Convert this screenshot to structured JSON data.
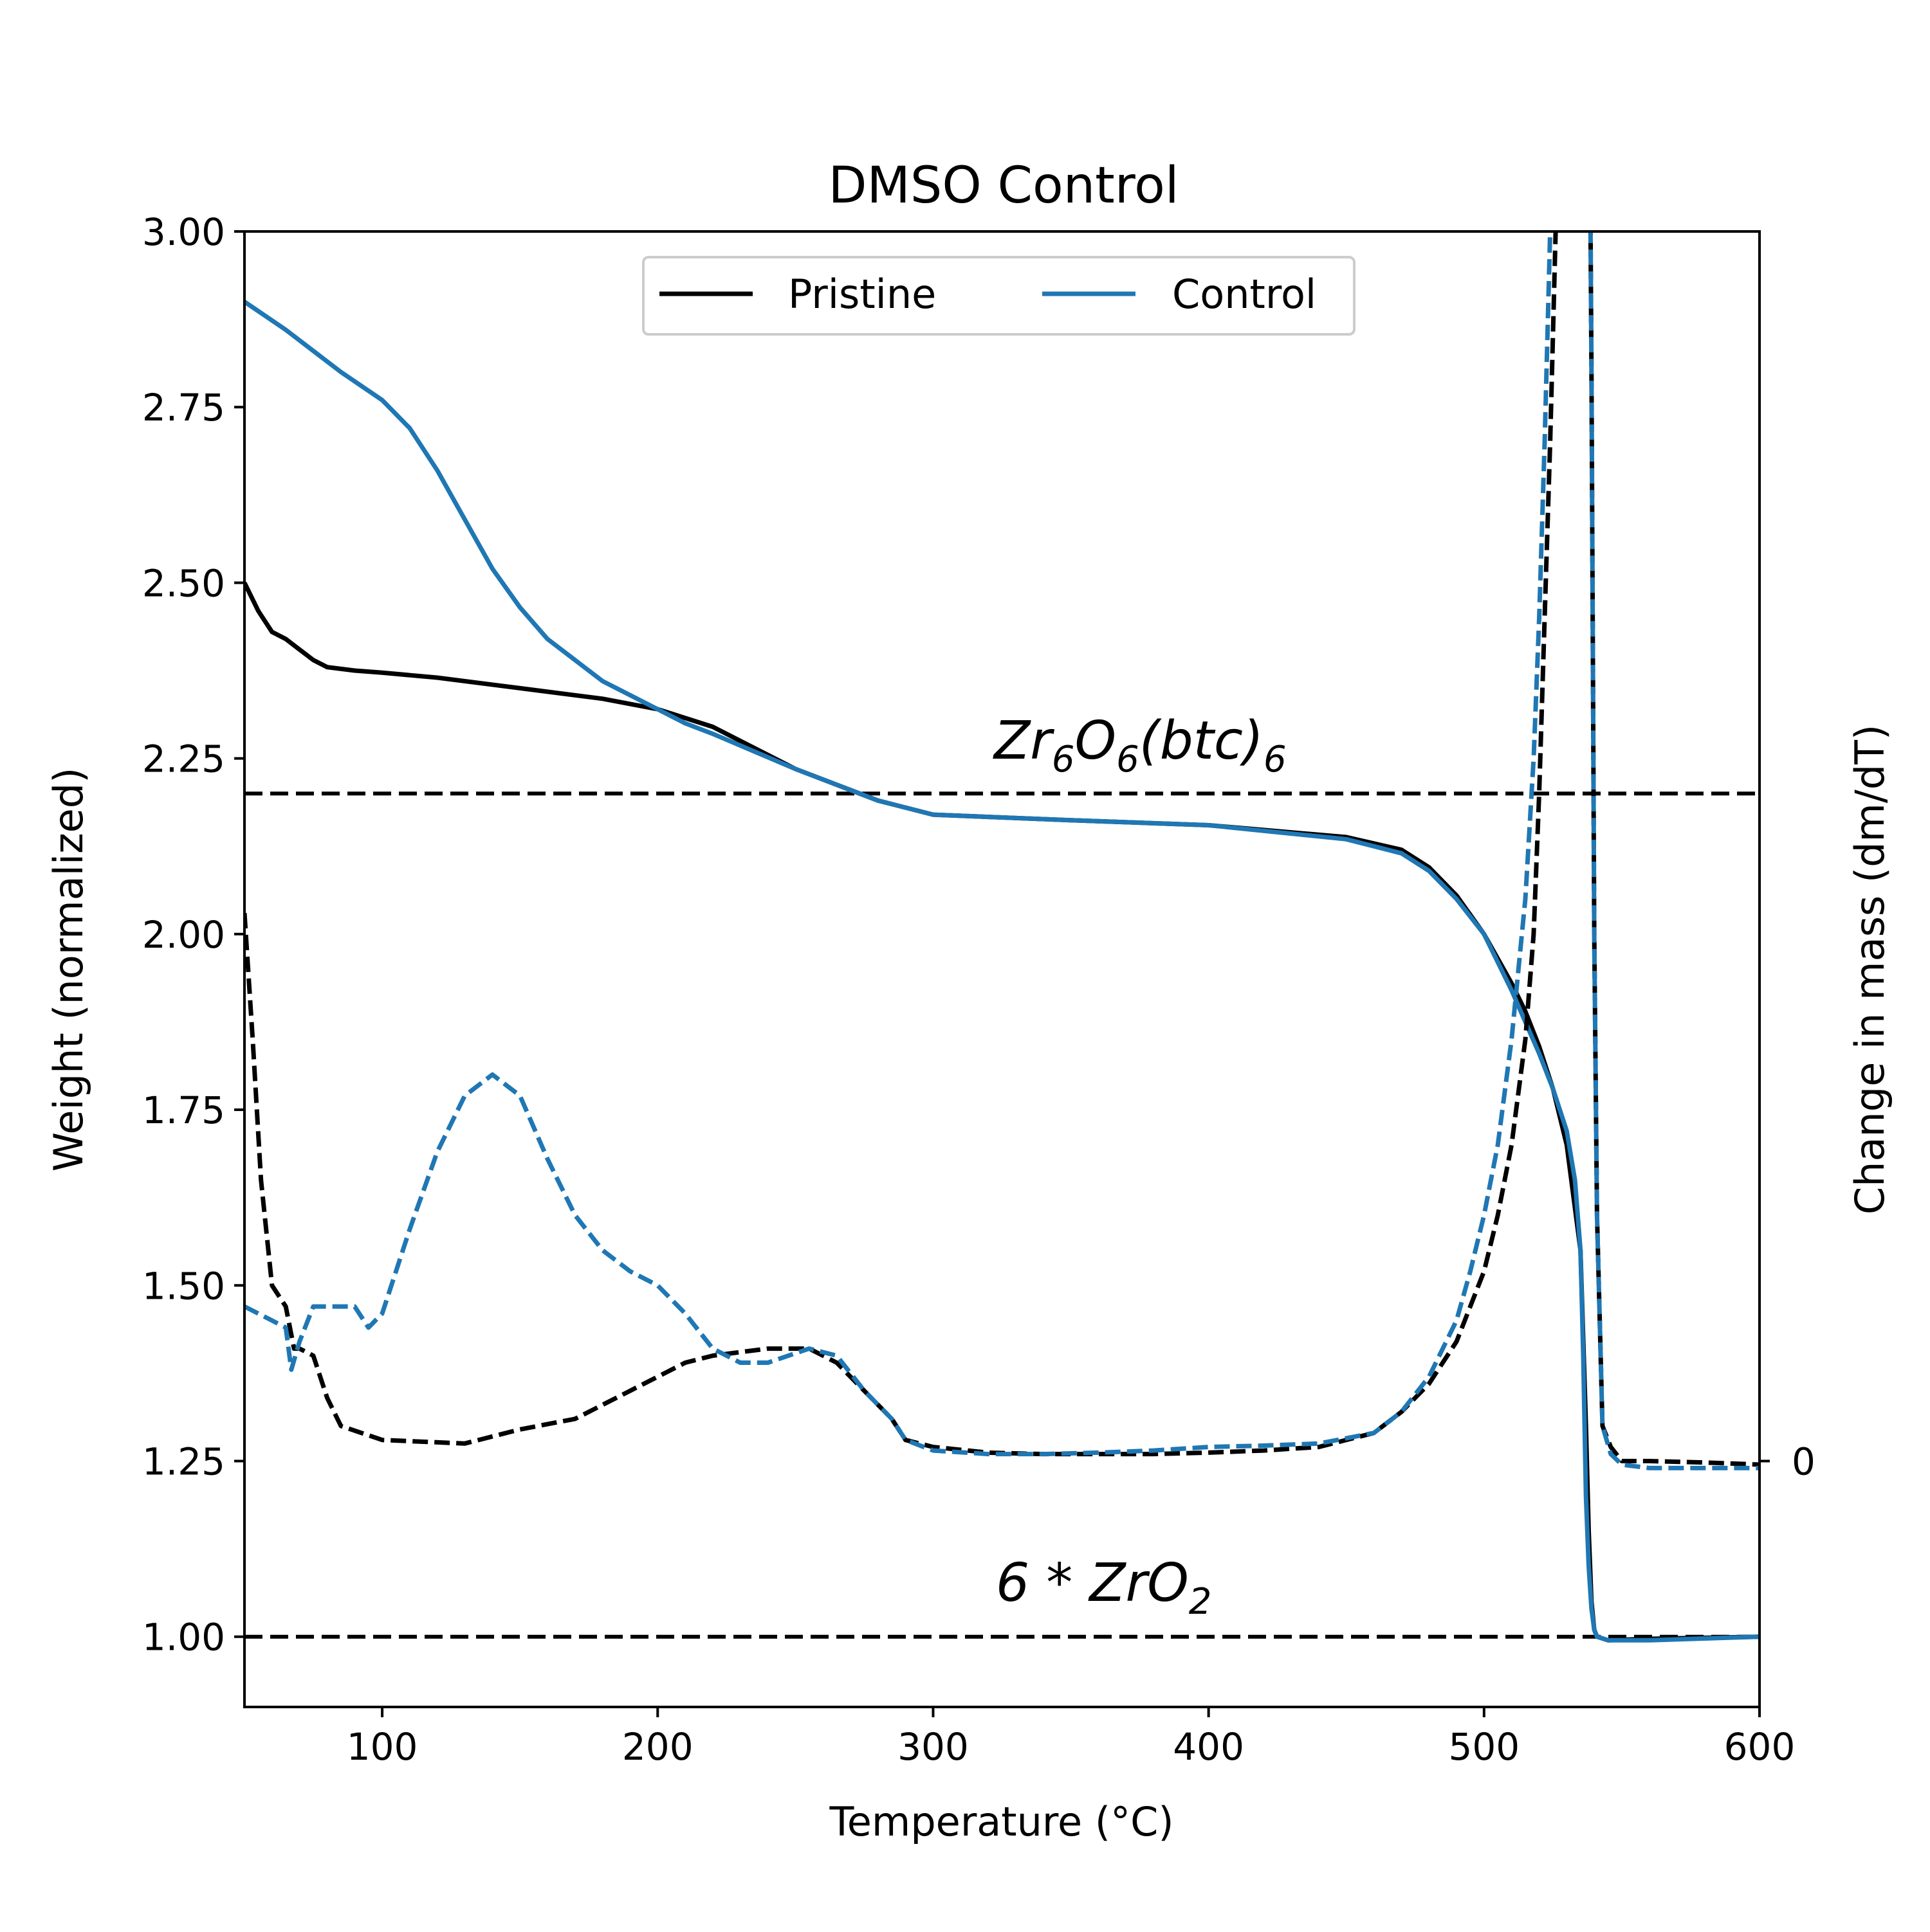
{
  "chart_data": {
    "type": "line",
    "title": "DMSO Control",
    "xlabel": "Temperature (°C)",
    "ylabel": "Weight (normalized)",
    "y2label": "Change in mass (dm/dT)",
    "xlim": [
      50,
      600
    ],
    "ylim": [
      0.9,
      3.0
    ],
    "xticks": [
      100,
      200,
      300,
      400,
      500,
      600
    ],
    "xtick_labels": [
      "100",
      "200",
      "300",
      "400",
      "500",
      "600"
    ],
    "yticks": [
      1.0,
      1.25,
      1.5,
      1.75,
      2.0,
      2.25,
      2.5,
      2.75,
      3.0
    ],
    "ytick_labels": [
      "1.00",
      "1.25",
      "1.50",
      "1.75",
      "2.00",
      "2.25",
      "2.50",
      "2.75",
      "3.00"
    ],
    "y2_tick": {
      "value": 1.25,
      "label": "0"
    },
    "grid": false,
    "legend_position": "top-center",
    "legend": [
      {
        "label": "Pristine",
        "color": "#000000"
      },
      {
        "label": "Control",
        "color": "#1f77b4"
      }
    ],
    "reference_lines": [
      {
        "y": 2.2,
        "label_main": "Zr",
        "label_parts": [
          "Zr",
          "6",
          "O",
          "6",
          "(btc)",
          "6"
        ],
        "text": "Zr6O6(btc)6"
      },
      {
        "y": 1.0,
        "label_parts": [
          "6 * ZrO",
          "2"
        ],
        "text": "6*ZrO2"
      }
    ],
    "series": [
      {
        "name": "Pristine",
        "style": "solid",
        "color": "#000000",
        "x": [
          50,
          55,
          60,
          65,
          70,
          75,
          80,
          90,
          100,
          120,
          150,
          180,
          200,
          220,
          250,
          270,
          280,
          300,
          350,
          400,
          450,
          470,
          480,
          490,
          500,
          510,
          515,
          520,
          525,
          530,
          535,
          537,
          538,
          539,
          540,
          541,
          545,
          560,
          600
        ],
        "y": [
          2.5,
          2.46,
          2.43,
          2.42,
          2.405,
          2.39,
          2.38,
          2.375,
          2.372,
          2.365,
          2.35,
          2.335,
          2.32,
          2.295,
          2.235,
          2.205,
          2.19,
          2.17,
          2.162,
          2.155,
          2.138,
          2.12,
          2.095,
          2.055,
          2.0,
          1.93,
          1.89,
          1.84,
          1.78,
          1.7,
          1.55,
          1.3,
          1.15,
          1.05,
          1.01,
          1.0,
          0.995,
          0.997,
          1.0
        ]
      },
      {
        "name": "Control",
        "style": "solid",
        "color": "#1f77b4",
        "x": [
          50,
          65,
          75,
          85,
          100,
          110,
          120,
          130,
          140,
          150,
          160,
          170,
          180,
          200,
          210,
          220,
          250,
          270,
          280,
          300,
          350,
          400,
          450,
          470,
          480,
          490,
          500,
          510,
          520,
          525,
          530,
          533,
          535,
          536,
          537,
          538,
          539,
          540,
          541,
          545,
          560,
          600
        ],
        "y": [
          2.9,
          2.86,
          2.83,
          2.8,
          2.76,
          2.72,
          2.66,
          2.59,
          2.52,
          2.465,
          2.42,
          2.39,
          2.36,
          2.32,
          2.3,
          2.285,
          2.235,
          2.205,
          2.19,
          2.17,
          2.162,
          2.155,
          2.135,
          2.115,
          2.09,
          2.05,
          2.0,
          1.92,
          1.83,
          1.78,
          1.72,
          1.65,
          1.55,
          1.4,
          1.2,
          1.1,
          1.04,
          1.01,
          1.0,
          0.995,
          0.995,
          1.0
        ]
      },
      {
        "name": "Pristine",
        "style": "dashed",
        "color": "#000000",
        "x": [
          50,
          53,
          56,
          60,
          65,
          68,
          70,
          75,
          80,
          85,
          100,
          130,
          150,
          170,
          180,
          190,
          200,
          210,
          220,
          230,
          240,
          255,
          265,
          275,
          285,
          290,
          300,
          320,
          340,
          360,
          380,
          400,
          420,
          440,
          460,
          470,
          480,
          490,
          500,
          505,
          510,
          515,
          518,
          520,
          522,
          524,
          526,
          528,
          530,
          532,
          534,
          536,
          538,
          539,
          540,
          541,
          543,
          546,
          550,
          560,
          580,
          600
        ],
        "y": [
          2.03,
          1.85,
          1.65,
          1.5,
          1.47,
          1.41,
          1.41,
          1.4,
          1.34,
          1.3,
          1.28,
          1.275,
          1.295,
          1.31,
          1.33,
          1.35,
          1.37,
          1.39,
          1.4,
          1.405,
          1.41,
          1.41,
          1.39,
          1.35,
          1.31,
          1.28,
          1.27,
          1.262,
          1.26,
          1.26,
          1.26,
          1.262,
          1.265,
          1.27,
          1.29,
          1.32,
          1.36,
          1.42,
          1.52,
          1.6,
          1.7,
          1.85,
          2.0,
          2.2,
          2.45,
          2.7,
          3.0,
          3.3,
          3.6,
          3.8,
          3.8,
          3.8,
          3.4,
          2.8,
          2.0,
          1.6,
          1.3,
          1.27,
          1.25,
          1.25,
          1.248,
          1.245
        ]
      },
      {
        "name": "Control",
        "style": "dashed",
        "color": "#1f77b4",
        "x": [
          50,
          60,
          65,
          67,
          70,
          75,
          90,
          95,
          100,
          110,
          120,
          130,
          140,
          150,
          160,
          170,
          180,
          190,
          200,
          210,
          220,
          230,
          240,
          255,
          265,
          275,
          285,
          290,
          300,
          320,
          340,
          360,
          380,
          400,
          420,
          440,
          460,
          470,
          480,
          490,
          495,
          500,
          505,
          510,
          515,
          518,
          520,
          522,
          524,
          526,
          528,
          530,
          532,
          534,
          536,
          538,
          539,
          540,
          541,
          543,
          546,
          550,
          560,
          580,
          600
        ],
        "y": [
          1.47,
          1.45,
          1.44,
          1.38,
          1.42,
          1.47,
          1.47,
          1.44,
          1.46,
          1.58,
          1.69,
          1.77,
          1.8,
          1.77,
          1.68,
          1.6,
          1.55,
          1.52,
          1.5,
          1.46,
          1.41,
          1.39,
          1.39,
          1.41,
          1.4,
          1.35,
          1.31,
          1.28,
          1.265,
          1.26,
          1.26,
          1.262,
          1.265,
          1.27,
          1.272,
          1.275,
          1.29,
          1.32,
          1.37,
          1.45,
          1.52,
          1.6,
          1.7,
          1.85,
          2.05,
          2.25,
          2.45,
          2.7,
          3.0,
          3.3,
          3.6,
          3.8,
          3.8,
          3.8,
          3.8,
          3.4,
          2.8,
          2.0,
          1.6,
          1.3,
          1.26,
          1.245,
          1.24,
          1.24,
          1.24
        ]
      }
    ]
  }
}
